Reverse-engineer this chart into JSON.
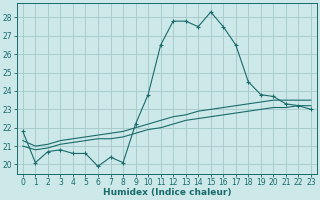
{
  "xlabel": "Humidex (Indice chaleur)",
  "ylabel": "",
  "xlim": [
    -0.5,
    23.5
  ],
  "ylim": [
    19.5,
    28.8
  ],
  "yticks": [
    20,
    21,
    22,
    23,
    24,
    25,
    26,
    27,
    28
  ],
  "xticks": [
    0,
    1,
    2,
    3,
    4,
    5,
    6,
    7,
    8,
    9,
    10,
    11,
    12,
    13,
    14,
    15,
    16,
    17,
    18,
    19,
    20,
    21,
    22,
    23
  ],
  "bg_color": "#cce8e8",
  "grid_color": "#aacccc",
  "line_color": "#1a6b6b",
  "main_y": [
    21.8,
    20.1,
    20.7,
    20.8,
    20.6,
    20.6,
    19.9,
    20.4,
    20.1,
    22.2,
    23.8,
    26.5,
    27.8,
    27.8,
    27.5,
    28.3,
    27.5,
    26.5,
    24.5,
    23.8,
    23.7,
    23.3,
    23.2,
    23.0
  ],
  "line2_y": [
    21.0,
    20.8,
    20.9,
    21.1,
    21.2,
    21.3,
    21.4,
    21.4,
    21.5,
    21.7,
    21.9,
    22.0,
    22.2,
    22.4,
    22.5,
    22.6,
    22.7,
    22.8,
    22.9,
    23.0,
    23.1,
    23.1,
    23.2,
    23.2
  ],
  "line3_y": [
    21.3,
    21.0,
    21.1,
    21.3,
    21.4,
    21.5,
    21.6,
    21.7,
    21.8,
    22.0,
    22.2,
    22.4,
    22.6,
    22.7,
    22.9,
    23.0,
    23.1,
    23.2,
    23.3,
    23.4,
    23.5,
    23.5,
    23.5,
    23.5
  ],
  "tick_fontsize": 5.5,
  "xlabel_fontsize": 6.5
}
